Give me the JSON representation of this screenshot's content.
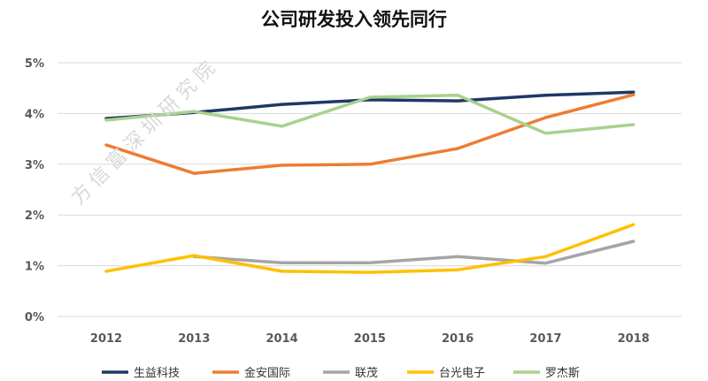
{
  "watermark": "方信富深圳研究院",
  "chart_data": {
    "type": "line",
    "title": "公司研发投入领先同行",
    "xlabel": "",
    "ylabel": "",
    "categories": [
      "2012",
      "2013",
      "2014",
      "2015",
      "2016",
      "2017",
      "2018"
    ],
    "yticks": [
      "0%",
      "1%",
      "2%",
      "3%",
      "4%",
      "5%"
    ],
    "ylim": [
      0,
      5
    ],
    "grid": true,
    "legend_position": "bottom",
    "series": [
      {
        "name": "生益科技",
        "color": "#1f3864",
        "values": [
          3.9,
          4.02,
          4.18,
          4.27,
          4.25,
          4.36,
          4.42
        ]
      },
      {
        "name": "金安国际",
        "color": "#ed7d31",
        "values": [
          3.38,
          2.82,
          2.98,
          3.0,
          3.31,
          3.92,
          4.37
        ]
      },
      {
        "name": "联茂",
        "color": "#a5a5a5",
        "values": [
          null,
          1.18,
          1.06,
          1.06,
          1.18,
          1.05,
          1.48
        ]
      },
      {
        "name": "台光电子",
        "color": "#ffc000",
        "values": [
          0.89,
          1.2,
          0.89,
          0.87,
          0.92,
          1.18,
          1.81
        ]
      },
      {
        "name": "罗杰斯",
        "color": "#a9d18e",
        "values": [
          3.87,
          4.04,
          3.75,
          4.32,
          4.36,
          3.61,
          3.78
        ]
      }
    ]
  }
}
